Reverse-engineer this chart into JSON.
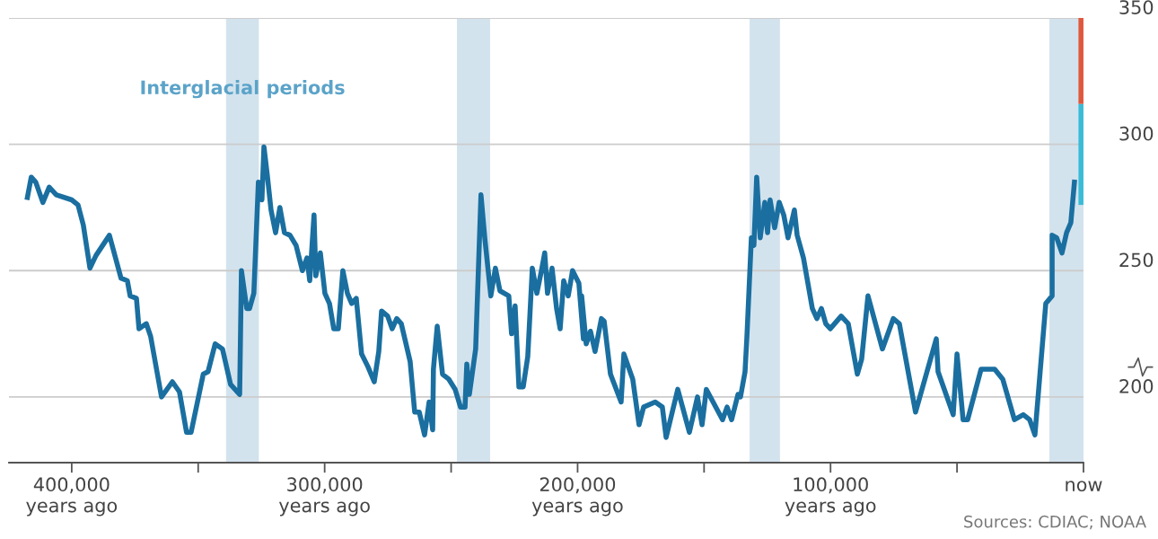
{
  "chart_data": {
    "type": "line",
    "xlim": [
      424800,
      0
    ],
    "ylim": [
      174,
      350
    ],
    "xticks": [
      {
        "value": 400000,
        "label": "400,000\nyears ago"
      },
      {
        "value": 350000,
        "label": null
      },
      {
        "value": 300000,
        "label": "300,000\nyears ago"
      },
      {
        "value": 250000,
        "label": null
      },
      {
        "value": 200000,
        "label": "200,000\nyears ago"
      },
      {
        "value": 150000,
        "label": null
      },
      {
        "value": 100000,
        "label": "100,000\nyears ago"
      },
      {
        "value": 50000,
        "label": null
      },
      {
        "value": 0,
        "label": "now"
      }
    ],
    "yticks": [
      200,
      250,
      300,
      350
    ],
    "grid": "y",
    "marker": "none",
    "line_style": "solid",
    "bands": [
      {
        "axis": "x",
        "from": 339000,
        "to": 326000,
        "label": "Interglacial periods",
        "color": "#d3e3ee"
      },
      {
        "axis": "x",
        "from": 247700,
        "to": 234600,
        "label": null,
        "color": "#d3e3ee"
      },
      {
        "axis": "x",
        "from": 132000,
        "to": 120000,
        "label": null,
        "color": "#d3e3ee"
      },
      {
        "axis": "x",
        "from": 13500,
        "to": 0,
        "label": null,
        "color": "#d3e3ee"
      }
    ],
    "series": [
      {
        "color": "#1a6fa0",
        "x": [
          417700,
          416000,
          414200,
          411400,
          408900,
          406100,
          400000,
          397500,
          395400,
          392800,
          390400,
          385100,
          380500,
          378000,
          376900,
          374400,
          373400,
          370500,
          368800,
          364500,
          360200,
          357400,
          354600,
          352800,
          348000,
          346100,
          343300,
          340400,
          337200,
          333600,
          332900,
          330800,
          329700,
          328000,
          326200,
          324800,
          324000,
          322700,
          321200,
          319400,
          317700,
          315900,
          313700,
          311900,
          311300,
          308800,
          307000,
          305900,
          304200,
          303500,
          301700,
          299900,
          298100,
          296400,
          294600,
          292800,
          291000,
          289300,
          287500,
          285400,
          282900,
          280400,
          278600,
          277500,
          275100,
          273300,
          271500,
          269700,
          266200,
          264400,
          262600,
          260500,
          258700,
          257300,
          257000,
          255500,
          253400,
          250900,
          248400,
          246300,
          244500,
          243800,
          242800,
          240300,
          238200,
          236700,
          234300,
          232500,
          230700,
          227200,
          226100,
          224700,
          223200,
          221500,
          219700,
          217900,
          216100,
          214300,
          213000,
          211900,
          210100,
          208300,
          206900,
          205500,
          203700,
          202000,
          199500,
          197700,
          198400,
          196600,
          194900,
          193100,
          190600,
          189500,
          187000,
          182800,
          181700,
          178200,
          175700,
          173900,
          169300,
          166500,
          165000,
          160400,
          155800,
          152600,
          150800,
          149100,
          142700,
          140900,
          139100,
          136600,
          135600,
          133800,
          133100,
          131300,
          130300,
          129200,
          127800,
          126000,
          124900,
          123900,
          122100,
          120300,
          118500,
          116800,
          114300,
          113200,
          110700,
          107200,
          105400,
          103600,
          101900,
          100100,
          95800,
          93000,
          89400,
          87700,
          85200,
          79500,
          75200,
          72800,
          66400,
          58200,
          57500,
          51500,
          50000,
          47600,
          45800,
          40500,
          35100,
          31900,
          27300,
          23800,
          21300,
          19200,
          14900,
          12400,
          12400,
          10600,
          8500,
          6700,
          5000,
          3500
        ],
        "values": [
          278,
          287,
          285,
          277,
          283,
          280,
          278,
          276,
          268,
          251,
          256,
          264,
          247,
          246,
          240,
          239,
          227,
          229,
          224,
          200,
          206,
          202,
          186,
          186,
          209,
          210,
          221,
          219,
          205,
          201,
          250,
          235,
          235,
          241,
          285,
          278,
          299,
          288,
          274,
          265,
          275,
          265,
          264,
          261,
          260,
          250,
          255,
          246,
          272,
          248,
          257,
          241,
          237,
          227,
          227,
          250,
          241,
          237,
          239,
          217,
          212,
          206,
          218,
          234,
          232,
          227,
          231,
          229,
          214,
          194,
          194,
          185,
          198,
          187,
          211,
          228,
          209,
          207,
          203,
          196,
          196,
          213,
          201,
          219,
          280,
          263,
          240,
          251,
          242,
          240,
          225,
          236,
          204,
          204,
          216,
          251,
          241,
          250,
          257,
          241,
          251,
          235,
          227,
          246,
          240,
          250,
          245,
          223,
          240,
          221,
          226,
          218,
          231,
          230,
          209,
          198,
          217,
          207,
          189,
          196,
          198,
          196,
          184,
          203,
          186,
          200,
          189,
          203,
          191,
          196,
          191,
          201,
          200,
          210,
          223,
          263,
          260,
          287,
          263,
          277,
          265,
          278,
          267,
          277,
          272,
          263,
          274,
          264,
          255,
          235,
          231,
          235,
          229,
          227,
          232,
          229,
          209,
          215,
          240,
          219,
          231,
          229,
          194,
          223,
          210,
          193,
          217,
          191,
          191,
          211,
          211,
          207,
          191,
          193,
          191,
          185,
          237,
          240,
          264,
          263,
          257,
          265,
          269,
          286
        ]
      },
      {
        "color": "#3bbcd6",
        "x": [
          1000,
          1000
        ],
        "values": [
          276,
          316
        ]
      },
      {
        "color": "#e0583c",
        "x": [
          1000,
          1000
        ],
        "values": [
          316,
          350
        ]
      }
    ],
    "annotations": [
      "Sources: CDIAC; NOAA"
    ]
  }
}
